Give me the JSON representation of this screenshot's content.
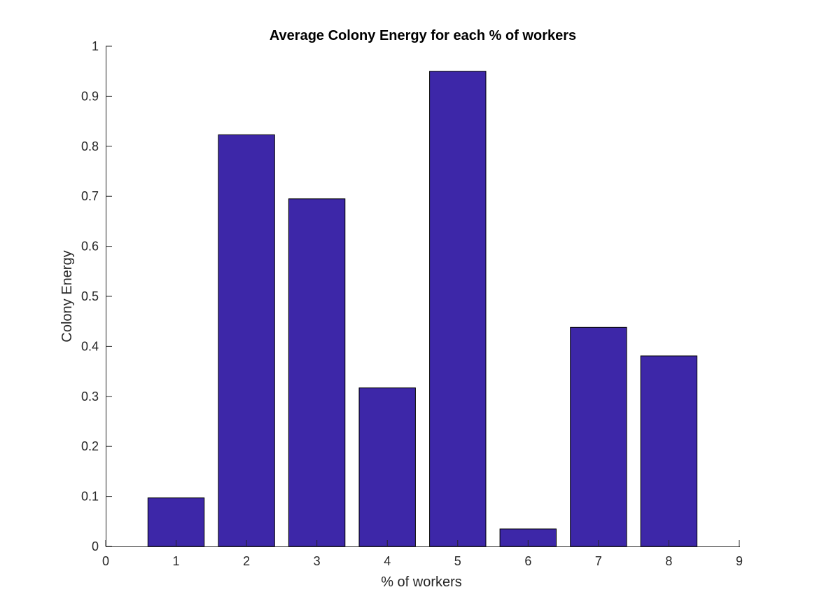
{
  "chart_data": {
    "type": "bar",
    "title": "Average Colony Energy for each % of workers",
    "xlabel": "% of workers",
    "ylabel": "Colony Energy",
    "categories": [
      1,
      2,
      3,
      4,
      5,
      6,
      7,
      8
    ],
    "values": [
      0.097,
      0.823,
      0.695,
      0.317,
      0.95,
      0.035,
      0.438,
      0.381
    ],
    "xlim": [
      0,
      9
    ],
    "ylim": [
      0,
      1
    ],
    "xticks": [
      "0",
      "1",
      "2",
      "3",
      "4",
      "5",
      "6",
      "7",
      "8",
      "9"
    ],
    "yticks": [
      "0",
      "0.1",
      "0.2",
      "0.3",
      "0.4",
      "0.5",
      "0.6",
      "0.7",
      "0.8",
      "0.9",
      "1"
    ],
    "bar_color": "#3d27a8",
    "grid": false,
    "legend": "none"
  }
}
